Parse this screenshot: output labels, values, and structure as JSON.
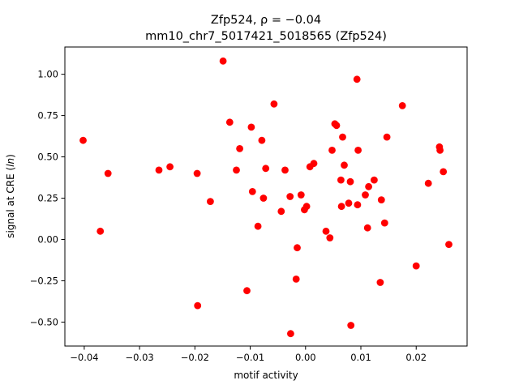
{
  "chart_data": {
    "type": "scatter",
    "title": "Zfp524, ρ = −0.04",
    "subtitle": "mm10_chr7_5017421_5018565 (Zfp524)",
    "xlabel": "motif activity",
    "ylabel": "signal at CRE (ln)",
    "xlim": [
      -0.0435,
      0.0292
    ],
    "ylim": [
      -0.645,
      1.165
    ],
    "xticks": [
      -0.04,
      -0.03,
      -0.02,
      -0.01,
      0.0,
      0.01,
      0.02
    ],
    "xtick_labels": [
      "−0.04",
      "−0.03",
      "−0.02",
      "−0.01",
      "0.00",
      "0.01",
      "0.02"
    ],
    "yticks": [
      -0.5,
      -0.25,
      0.0,
      0.25,
      0.5,
      0.75,
      1.0
    ],
    "ytick_labels": [
      "−0.50",
      "−0.25",
      "0.00",
      "0.25",
      "0.50",
      "0.75",
      "1.00"
    ],
    "grid": false,
    "marker_color": "#ff0000",
    "points": [
      [
        -0.0402,
        0.6
      ],
      [
        -0.0371,
        0.05
      ],
      [
        -0.0357,
        0.4
      ],
      [
        -0.0265,
        0.42
      ],
      [
        -0.0245,
        0.44
      ],
      [
        -0.0196,
        0.4
      ],
      [
        -0.0195,
        -0.4
      ],
      [
        -0.0172,
        0.23
      ],
      [
        -0.0149,
        1.08
      ],
      [
        -0.0137,
        0.71
      ],
      [
        -0.0125,
        0.42
      ],
      [
        -0.0119,
        0.55
      ],
      [
        -0.0106,
        -0.31
      ],
      [
        -0.0098,
        0.68
      ],
      [
        -0.0096,
        0.29
      ],
      [
        -0.0086,
        0.08
      ],
      [
        -0.0079,
        0.6
      ],
      [
        -0.0076,
        0.25
      ],
      [
        -0.0072,
        0.43
      ],
      [
        -0.0057,
        0.82
      ],
      [
        -0.0044,
        0.17
      ],
      [
        -0.0037,
        0.42
      ],
      [
        -0.0028,
        0.26
      ],
      [
        -0.0027,
        -0.57
      ],
      [
        -0.0017,
        -0.24
      ],
      [
        -0.0015,
        -0.05
      ],
      [
        -0.0008,
        0.27
      ],
      [
        -0.0002,
        0.18
      ],
      [
        0.0002,
        0.2
      ],
      [
        0.0008,
        0.44
      ],
      [
        0.0015,
        0.46
      ],
      [
        0.0037,
        0.05
      ],
      [
        0.0044,
        0.01
      ],
      [
        0.0048,
        0.54
      ],
      [
        0.0053,
        0.7
      ],
      [
        0.0056,
        0.69
      ],
      [
        0.0064,
        0.36
      ],
      [
        0.0065,
        0.2
      ],
      [
        0.0067,
        0.62
      ],
      [
        0.007,
        0.45
      ],
      [
        0.0078,
        0.22
      ],
      [
        0.0081,
        0.35
      ],
      [
        0.0082,
        -0.52
      ],
      [
        0.0093,
        0.97
      ],
      [
        0.0095,
        0.54
      ],
      [
        0.0094,
        0.21
      ],
      [
        0.0108,
        0.27
      ],
      [
        0.0112,
        0.07
      ],
      [
        0.0114,
        0.32
      ],
      [
        0.0124,
        0.36
      ],
      [
        0.0135,
        -0.26
      ],
      [
        0.0137,
        0.24
      ],
      [
        0.0143,
        0.1
      ],
      [
        0.0147,
        0.62
      ],
      [
        0.0175,
        0.81
      ],
      [
        0.02,
        -0.16
      ],
      [
        0.0222,
        0.34
      ],
      [
        0.0242,
        0.56
      ],
      [
        0.0243,
        0.54
      ],
      [
        0.0249,
        0.41
      ],
      [
        0.0259,
        -0.03
      ]
    ]
  }
}
